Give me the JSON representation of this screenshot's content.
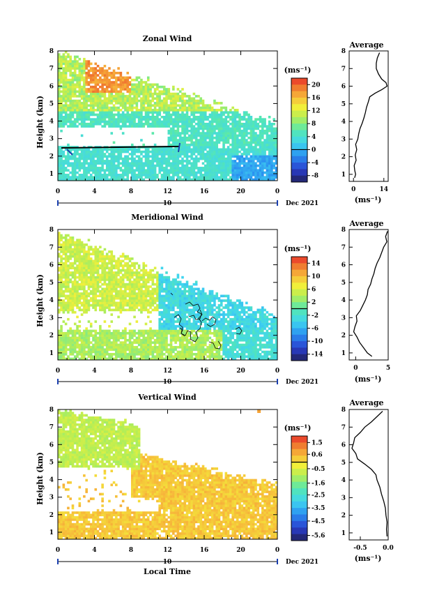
{
  "chart_data": [
    {
      "type": "heatmap",
      "title": "Zonal Wind",
      "ylabel": "Height (km)",
      "xticks": [
        "0",
        "4",
        "8",
        "12",
        "16",
        "20",
        "0"
      ],
      "yticks": [
        "1",
        "2",
        "3",
        "4",
        "5",
        "6",
        "7",
        "8"
      ],
      "xlim": [
        0,
        24
      ],
      "ylim": [
        0.6,
        8
      ],
      "date_day": "10",
      "date_label": "Dec 2021",
      "colorbar": {
        "unit": "(ms⁻¹)",
        "ticks": [
          "20",
          "16",
          "12",
          "8",
          "4",
          "0",
          "-4",
          "-8"
        ],
        "range": [
          -10,
          22
        ]
      },
      "profile": {
        "title": "Average",
        "xlabel": "(ms⁻¹)",
        "xticks": [
          "0",
          "14"
        ],
        "xlim": [
          -2,
          16
        ],
        "heights": [
          0.8,
          1.0,
          1.2,
          1.5,
          1.8,
          2.1,
          2.4,
          2.7,
          3.0,
          3.3,
          3.6,
          3.9,
          4.2,
          4.5,
          4.8,
          5.1,
          5.4,
          5.6,
          5.8,
          6.0,
          6.2,
          6.4,
          6.7,
          7.0,
          7.3,
          7.6,
          7.9
        ],
        "values": [
          0.5,
          1.0,
          0.6,
          0.3,
          1.2,
          0.8,
          1.5,
          1.0,
          2.0,
          2.4,
          3.0,
          4.0,
          4.8,
          5.5,
          6.0,
          6.8,
          7.5,
          10.0,
          13.0,
          15.5,
          15.0,
          13.0,
          11.5,
          10.5,
          10.5,
          11.0,
          12.0
        ]
      }
    },
    {
      "type": "heatmap",
      "title": "Meridional Wind",
      "ylabel": "Height (km)",
      "xticks": [
        "0",
        "4",
        "8",
        "12",
        "16",
        "20",
        "0"
      ],
      "yticks": [
        "1",
        "2",
        "3",
        "4",
        "5",
        "6",
        "7",
        "8"
      ],
      "xlim": [
        0,
        24
      ],
      "ylim": [
        0.6,
        8
      ],
      "date_day": "10",
      "date_label": "Dec 2021",
      "colorbar": {
        "unit": "(ms⁻¹)",
        "ticks": [
          "14",
          "10",
          "6",
          "2",
          "-2",
          "-6",
          "-10",
          "-14"
        ],
        "range": [
          -16,
          16
        ]
      },
      "profile": {
        "title": "Average",
        "xlabel": "(ms⁻¹)",
        "xticks": [
          "0",
          "5"
        ],
        "xlim": [
          -1,
          5
        ],
        "heights": [
          0.8,
          1.0,
          1.3,
          1.6,
          1.9,
          2.2,
          2.5,
          2.8,
          3.1,
          3.4,
          3.7,
          4.0,
          4.3,
          4.6,
          4.9,
          5.2,
          5.5,
          5.8,
          6.1,
          6.4,
          6.7,
          7.0,
          7.3,
          7.6,
          7.9
        ],
        "values": [
          2.5,
          1.8,
          1.2,
          0.6,
          0.2,
          -0.3,
          -0.1,
          0.2,
          0.1,
          0.7,
          1.1,
          1.5,
          1.8,
          1.9,
          2.3,
          2.5,
          2.8,
          3.0,
          3.3,
          3.7,
          4.0,
          4.3,
          4.8,
          4.6,
          4.9
        ]
      }
    },
    {
      "type": "heatmap",
      "title": "Vertical Wind",
      "ylabel": "Height (km)",
      "xlabel": "Local Time",
      "xticks": [
        "0",
        "4",
        "8",
        "12",
        "16",
        "20",
        "0"
      ],
      "yticks": [
        "1",
        "2",
        "3",
        "4",
        "5",
        "6",
        "7",
        "8"
      ],
      "xlim": [
        0,
        24
      ],
      "ylim": [
        0.6,
        8
      ],
      "date_day": "10",
      "date_label": "Dec 2021",
      "colorbar": {
        "unit": "(ms⁻¹)",
        "ticks": [
          "1.5",
          "0.6",
          "-0.5",
          "-1.6",
          "-2.5",
          "-3.5",
          "-4.5",
          "-5.6"
        ],
        "range": [
          -6,
          2
        ]
      },
      "profile": {
        "title": "Average",
        "xlabel": "(ms⁻¹)",
        "xticks": [
          "-0.5",
          "0.0"
        ],
        "xlim": [
          -0.7,
          0.0
        ],
        "heights": [
          0.8,
          1.2,
          1.6,
          2.0,
          2.4,
          2.8,
          3.2,
          3.6,
          4.0,
          4.3,
          4.6,
          4.9,
          5.2,
          5.5,
          5.8,
          6.1,
          6.4,
          6.7,
          7.0,
          7.3,
          7.6,
          7.9
        ],
        "values": [
          -0.02,
          -0.03,
          -0.02,
          -0.04,
          -0.05,
          -0.08,
          -0.12,
          -0.15,
          -0.2,
          -0.22,
          -0.3,
          -0.42,
          -0.55,
          -0.58,
          -0.65,
          -0.62,
          -0.6,
          -0.5,
          -0.42,
          -0.3,
          -0.2,
          -0.1
        ]
      }
    }
  ]
}
